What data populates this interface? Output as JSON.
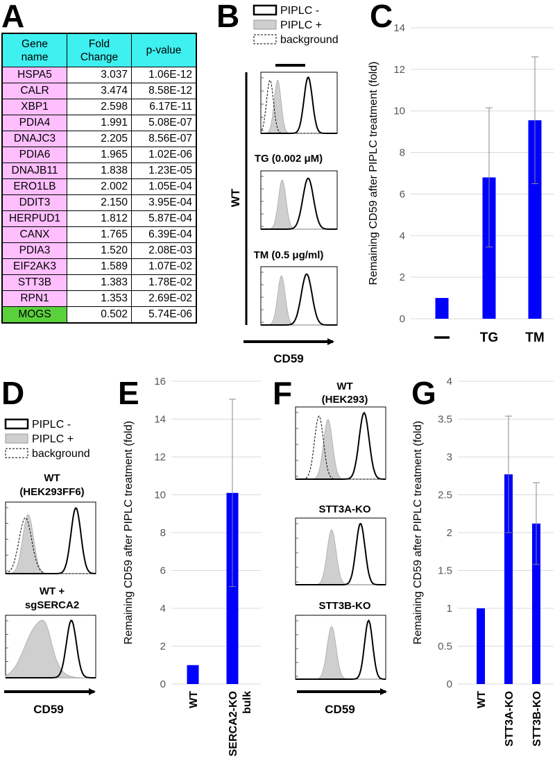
{
  "panels": {
    "A": "A",
    "B": "B",
    "C": "C",
    "D": "D",
    "E": "E",
    "F": "F",
    "G": "G"
  },
  "table": {
    "headers": [
      "Gene\nname",
      "Fold\nChange",
      "p-value"
    ],
    "rows": [
      {
        "gene": "HSPA5",
        "fold": "3.037",
        "p": "1.06E-12",
        "highlight": "pink"
      },
      {
        "gene": "CALR",
        "fold": "3.474",
        "p": "8.58E-12",
        "highlight": "pink"
      },
      {
        "gene": "XBP1",
        "fold": "2.598",
        "p": "6.17E-11",
        "highlight": "pink"
      },
      {
        "gene": "PDIA4",
        "fold": "1.991",
        "p": "5.08E-07",
        "highlight": "pink"
      },
      {
        "gene": "DNAJC3",
        "fold": "2.205",
        "p": "8.56E-07",
        "highlight": "pink"
      },
      {
        "gene": "PDIA6",
        "fold": "1.965",
        "p": "1.02E-06",
        "highlight": "pink"
      },
      {
        "gene": "DNAJB11",
        "fold": "1.838",
        "p": "1.23E-05",
        "highlight": "pink"
      },
      {
        "gene": "ERO1LB",
        "fold": "2.002",
        "p": "1.05E-04",
        "highlight": "pink"
      },
      {
        "gene": "DDIT3",
        "fold": "2.150",
        "p": "3.95E-04",
        "highlight": "pink"
      },
      {
        "gene": "HERPUD1",
        "fold": "1.812",
        "p": "5.87E-04",
        "highlight": "pink"
      },
      {
        "gene": "CANX",
        "fold": "1.765",
        "p": "6.39E-04",
        "highlight": "pink"
      },
      {
        "gene": "PDIA3",
        "fold": "1.520",
        "p": "2.08E-03",
        "highlight": "pink"
      },
      {
        "gene": "EIF2AK3",
        "fold": "1.589",
        "p": "1.07E-02",
        "highlight": "pink"
      },
      {
        "gene": "STT3B",
        "fold": "1.383",
        "p": "1.78E-02",
        "highlight": "pink"
      },
      {
        "gene": "RPN1",
        "fold": "1.353",
        "p": "2.69E-02",
        "highlight": "pink"
      },
      {
        "gene": "MOGS",
        "fold": "0.502",
        "p": "5.74E-06",
        "highlight": "green"
      }
    ]
  },
  "legend": {
    "piplc_minus": "PIPLC -",
    "piplc_plus": "PIPLC +",
    "background": "background"
  },
  "flow_B": {
    "side_label": "WT",
    "tg_label": "TG (0.002 μM)",
    "tm_label": "TM (0.5 μg/ml)",
    "axis_label": "CD59"
  },
  "flow_D": {
    "wt_label_1": "WT",
    "wt_label_2": "(HEK293FF6)",
    "sg_label_1": "WT +",
    "sg_label_2": "sgSERCA2",
    "axis_label": "CD59"
  },
  "flow_F": {
    "wt_label_1": "WT",
    "wt_label_2": "(HEK293)",
    "a_label": "STT3A-KO",
    "b_label": "STT3B-KO",
    "axis_label": "CD59"
  },
  "colors": {
    "bar": "#0000ff",
    "table_header": "#3ff0f0",
    "pink": "#ffbfff",
    "green": "#5ad13c",
    "fill_gray": "#cfcfcf"
  },
  "chart_data": [
    {
      "id": "C",
      "type": "bar",
      "categories": [
        "—",
        "TG",
        "TM"
      ],
      "values": [
        1.0,
        6.8,
        9.55
      ],
      "errors": [
        0.0,
        3.35,
        3.05
      ],
      "ylabel": "Remaining CD59 after PIPLC treatment (fold)",
      "ylim": [
        0,
        14
      ],
      "yticks": [
        0,
        2,
        4,
        6,
        8,
        10,
        12,
        14
      ],
      "grid": true
    },
    {
      "id": "E",
      "type": "bar",
      "categories": [
        "WT",
        "SERCA2-KO\nbulk"
      ],
      "values": [
        1.0,
        10.1
      ],
      "errors": [
        0.0,
        4.95
      ],
      "ylabel": "Remaining CD59 after PIPLC treatment (fold)",
      "ylim": [
        0,
        16
      ],
      "yticks": [
        0,
        2,
        4,
        6,
        8,
        10,
        12,
        14,
        16
      ],
      "grid": true
    },
    {
      "id": "G",
      "type": "bar",
      "categories": [
        "WT",
        "STT3A-KO",
        "STT3B-KO"
      ],
      "values": [
        1.0,
        2.77,
        2.12
      ],
      "errors": [
        0.0,
        0.77,
        0.54
      ],
      "ylabel": "Remaining CD59 after PIPLC treatment (fold)",
      "ylim": [
        0,
        4
      ],
      "yticks": [
        0,
        0.5,
        1,
        1.5,
        2,
        2.5,
        3,
        3.5,
        4
      ],
      "grid": true
    }
  ]
}
